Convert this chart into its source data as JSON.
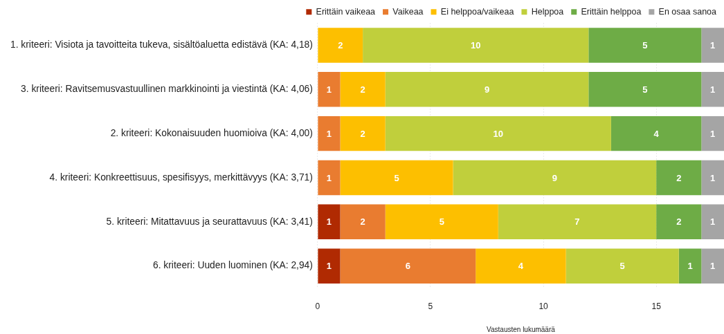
{
  "chart_data": {
    "type": "bar",
    "orientation": "horizontal",
    "stacked": true,
    "xlabel": "Vastausten lukumäärä",
    "categories": [
      "1. kriteeri: Visiota ja tavoitteita tukeva, sisältöaluetta edistävä (KA: 4,18)",
      "3. kriteeri: Ravitsemusvastuullinen markkinointi ja viestintä (KA: 4,06)",
      "2. kriteeri: Kokonaisuuden huomioiva (KA: 4,00)",
      "4. kriteeri: Konkreettisuus, spesifisyys, merkittävyys (KA: 3,71)",
      "5. kriteeri: Mitattavuus ja seurattavuus (KA: 3,41)",
      "6. kriteeri: Uuden luominen (KA: 2,94)"
    ],
    "series": [
      {
        "name": "Erittäin vaikeaa",
        "color": "#b02a02",
        "values": [
          0,
          0,
          0,
          0,
          1,
          1
        ],
        "value_labels": [
          null,
          null,
          null,
          null,
          "1",
          "1"
        ]
      },
      {
        "name": "Vaikeaa",
        "color": "#e97c30",
        "values": [
          0,
          1,
          1,
          1,
          2,
          6
        ],
        "value_labels": [
          null,
          "1",
          "1",
          "1",
          "2",
          "6"
        ]
      },
      {
        "name": "Ei helppoa/vaikeaa",
        "color": "#fdbf00",
        "values": [
          2,
          2,
          2,
          5,
          5,
          4
        ],
        "value_labels": [
          "2",
          "2",
          "2",
          "5",
          "5",
          "4"
        ]
      },
      {
        "name": "Helppoa",
        "color": "#c0cf3c",
        "values": [
          10,
          9,
          10,
          9,
          7,
          5
        ],
        "value_labels": [
          "10",
          "9",
          "10",
          "9",
          "7",
          "5"
        ]
      },
      {
        "name": "Erittäin helppoa",
        "color": "#6eac46",
        "values": [
          5,
          5,
          4,
          2,
          2,
          1
        ],
        "value_labels": [
          "5",
          "5",
          "4",
          "2",
          "2",
          "1"
        ]
      },
      {
        "name": "En osaa sanoa",
        "color": "#a5a5a5",
        "values": [
          1,
          1,
          1,
          1,
          1,
          1
        ],
        "value_labels": [
          "1",
          "1",
          "1",
          "1",
          "1",
          "1"
        ]
      }
    ],
    "xlim": [
      0,
      18
    ],
    "xticks": [
      0,
      5,
      10,
      15
    ],
    "grid": "x",
    "legend": "top right"
  }
}
